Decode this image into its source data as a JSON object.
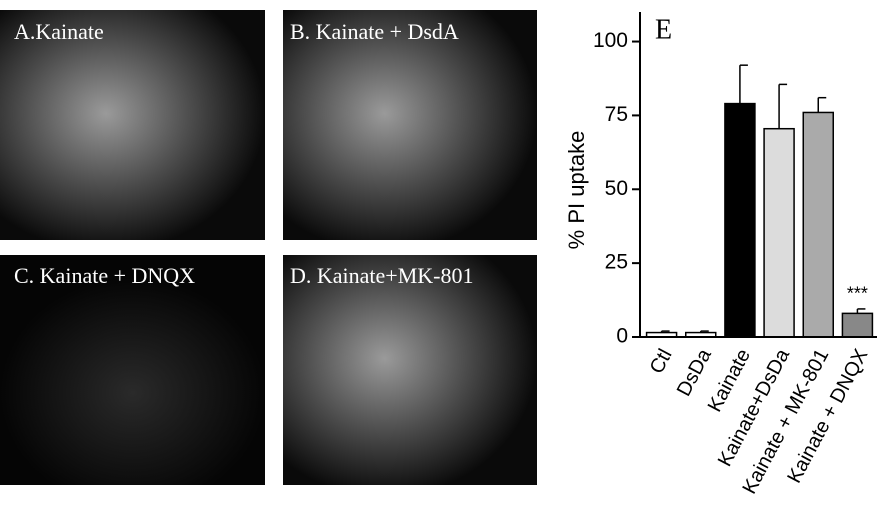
{
  "panels": [
    {
      "label": "A.Kainate"
    },
    {
      "label": "B. Kainate + DsdA"
    },
    {
      "label": "C. Kainate + DNQX"
    },
    {
      "label": "D. Kainate+MK-801"
    }
  ],
  "chart_data": {
    "type": "bar",
    "title": "E",
    "ylabel": "% PI uptake",
    "categories": [
      "Ctl",
      "DsDa",
      "Kainate",
      "Kainate+DsDa",
      "Kainate + MK-801",
      "Kainate + DNQX"
    ],
    "values": [
      1.5,
      1.5,
      79,
      70.5,
      76,
      8
    ],
    "errors": [
      0.5,
      0.5,
      13,
      15,
      5,
      1.5
    ],
    "colors": [
      "#ffffff",
      "#ffffff",
      "#000000",
      "#dcdcdc",
      "#aaaaaa",
      "#888888"
    ],
    "annotations": [
      {
        "index": 5,
        "text": "***"
      }
    ],
    "ylim": [
      0,
      110
    ],
    "yticks": [
      0,
      25,
      50,
      75,
      100
    ]
  }
}
